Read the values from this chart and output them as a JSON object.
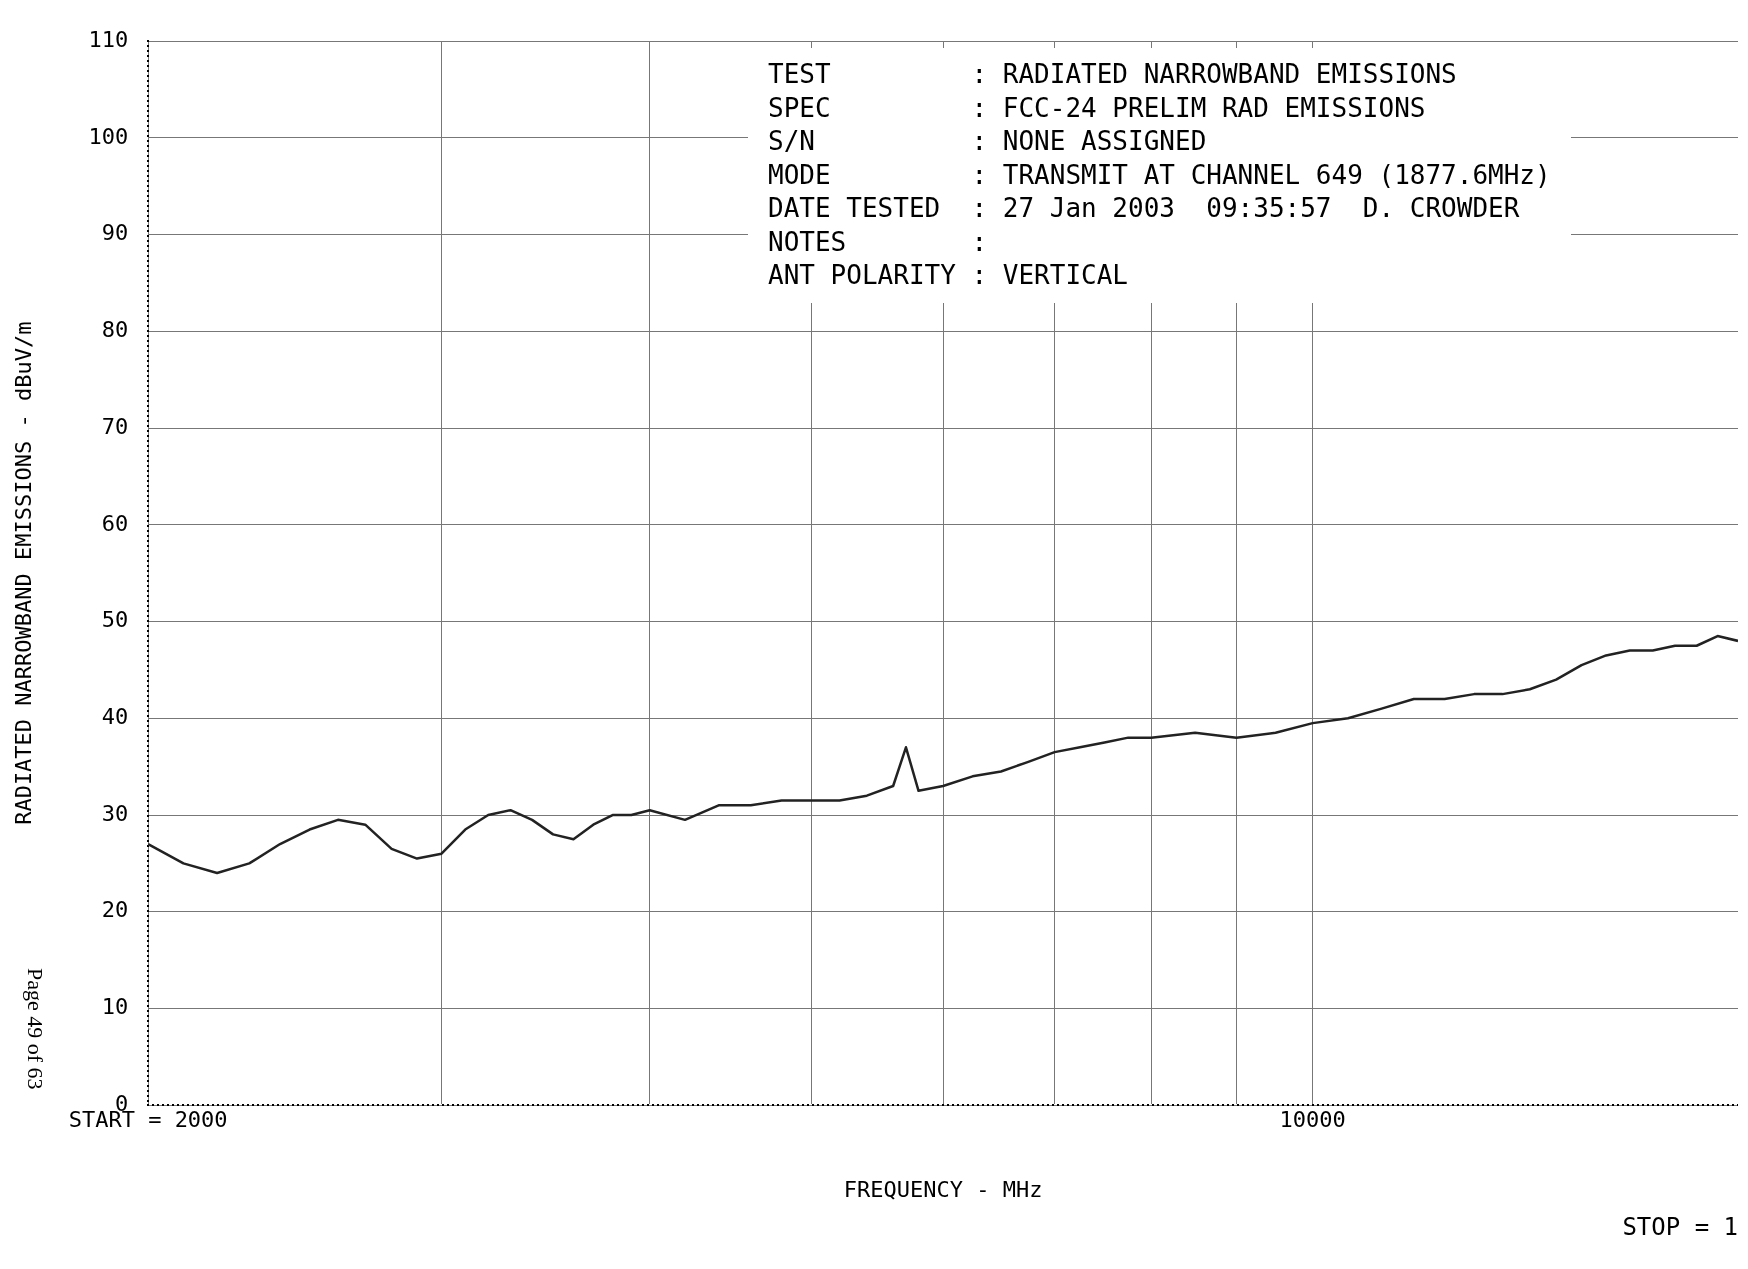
{
  "chart_data": {
    "type": "line",
    "xlabel": "FREQUENCY - MHz",
    "ylabel": "RADIATED NARROWBAND EMISSIONS - dBuV/m",
    "x": [
      2000,
      2100,
      2200,
      2300,
      2400,
      2500,
      2600,
      2700,
      2800,
      2900,
      3000,
      3100,
      3200,
      3300,
      3400,
      3500,
      3600,
      3700,
      3800,
      3900,
      4000,
      4200,
      4400,
      4600,
      4800,
      5000,
      5200,
      5400,
      5600,
      5700,
      5800,
      6000,
      6250,
      6500,
      6750,
      7000,
      7250,
      7500,
      7750,
      8000,
      8500,
      9000,
      9500,
      10000,
      10500,
      11000,
      11500,
      12000,
      12500,
      13000,
      13500,
      14000,
      14500,
      15000,
      15500,
      16000,
      16500,
      17000,
      17500,
      18000
    ],
    "series": [
      {
        "color": "#222222",
        "values": [
          27,
          25,
          24,
          25,
          27,
          28.5,
          29.5,
          29,
          26.5,
          25.5,
          26,
          28.5,
          30,
          30.5,
          29.5,
          28,
          27.5,
          29,
          30,
          30,
          30.5,
          29.5,
          31,
          31,
          31.5,
          31.5,
          31.5,
          32,
          33,
          37,
          32.5,
          33,
          34,
          34.5,
          35.5,
          36.5,
          37,
          37.5,
          38,
          38,
          38.5,
          38,
          38.5,
          39.5,
          40,
          41,
          42,
          42,
          42.5,
          42.5,
          43,
          44,
          45.5,
          46.5,
          47,
          47,
          47.5,
          47.5,
          48.5,
          48
        ]
      }
    ],
    "log": "x",
    "xlim": [
      2000,
      18000
    ],
    "xticks": [
      {
        "value": 2000,
        "label": "START = 2000"
      },
      {
        "value": 3000,
        "label": null
      },
      {
        "value": 4000,
        "label": null
      },
      {
        "value": 5000,
        "label": null
      },
      {
        "value": 6000,
        "label": null
      },
      {
        "value": 7000,
        "label": null
      },
      {
        "value": 8000,
        "label": null
      },
      {
        "value": 9000,
        "label": null
      },
      10000
    ],
    "ylim": [
      0,
      110
    ],
    "yticks": [
      0,
      10,
      20,
      30,
      40,
      50,
      60,
      70,
      80,
      90,
      100,
      110
    ],
    "grid": true,
    "legend": false,
    "marker": "none",
    "line_style": "solid",
    "annotations": [
      "TEST         : RADIATED NARROWBAND EMISSIONS",
      "SPEC         : FCC-24 PRELIM RAD EMISSIONS",
      "S/N          : NONE ASSIGNED",
      "MODE         : TRANSMIT AT CHANNEL 649 (1877.6MHz)",
      "DATE TESTED  : 27 Jan 2003  09:35:57  D. CROWDER",
      "NOTES        :",
      "ANT POLARITY : VERTICAL",
      "STOP = 1",
      "Page 49 of 63"
    ]
  }
}
